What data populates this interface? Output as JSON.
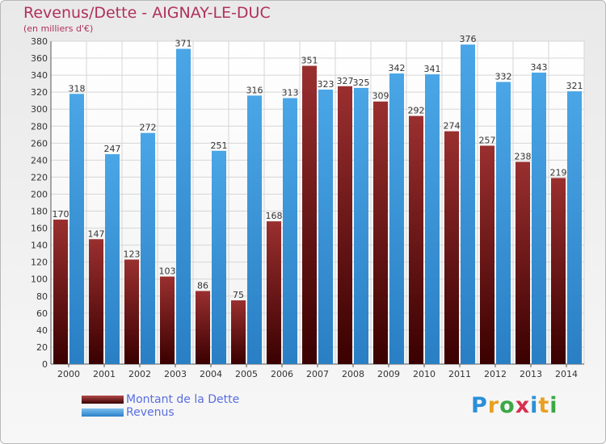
{
  "chart_data": {
    "type": "bar",
    "title": "Revenus/Dette - AIGNAY-LE-DUC",
    "subtitle": "(en milliers d'€)",
    "categories": [
      "2000",
      "2001",
      "2002",
      "2003",
      "2004",
      "2005",
      "2006",
      "2007",
      "2008",
      "2009",
      "2010",
      "2011",
      "2012",
      "2013",
      "2014"
    ],
    "series": [
      {
        "name": "Montant de la Dette",
        "color": "#8b1a1a",
        "values": [
          170,
          147,
          123,
          103,
          86,
          75,
          168,
          351,
          327,
          309,
          292,
          274,
          257,
          238,
          219
        ]
      },
      {
        "name": "Revenus",
        "color": "#3a98dd",
        "values": [
          318,
          247,
          272,
          371,
          251,
          316,
          313,
          323,
          325,
          342,
          341,
          376,
          332,
          343,
          321
        ]
      }
    ],
    "ylim": [
      0,
      380
    ],
    "yticks": [
      0,
      20,
      40,
      60,
      80,
      100,
      120,
      140,
      160,
      180,
      200,
      220,
      240,
      260,
      280,
      300,
      320,
      340,
      360,
      380
    ],
    "grid": true,
    "legend_position": "bottom-left"
  },
  "brand": {
    "text": "Proxiti"
  }
}
